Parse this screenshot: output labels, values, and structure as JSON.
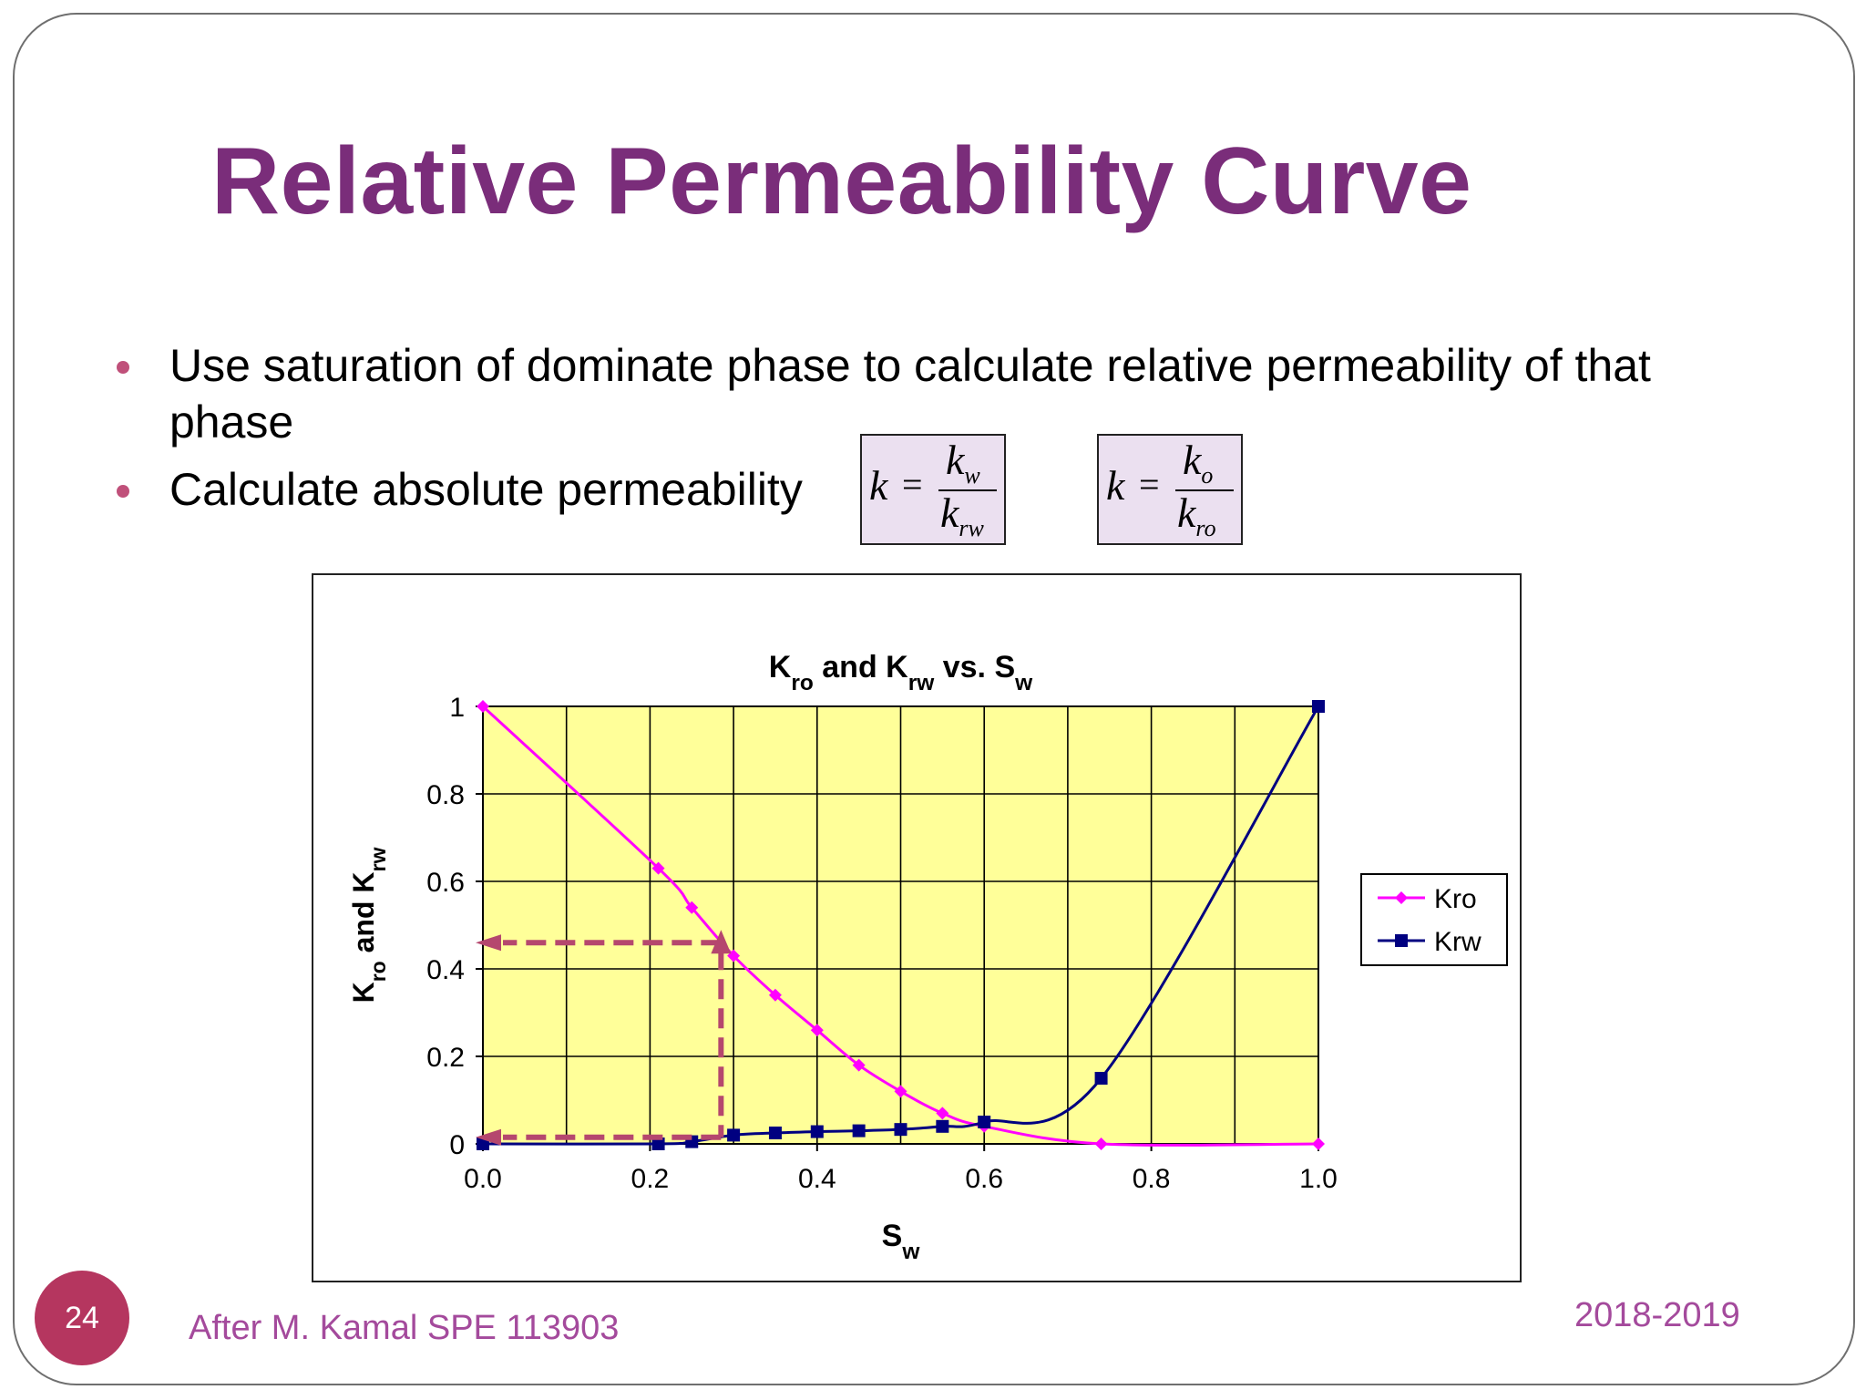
{
  "slide": {
    "title": "Relative Permeability Curve",
    "bullets": [
      "Use saturation of dominate phase to calculate relative permeability of that phase",
      "Calculate absolute permeability"
    ],
    "formulas": [
      {
        "lhs": "k",
        "eq": "=",
        "num_base": "k",
        "num_sub": "w",
        "den_base": "k",
        "den_sub": "rw"
      },
      {
        "lhs": "k",
        "eq": "=",
        "num_base": "k",
        "num_sub": "o",
        "den_base": "k",
        "den_sub": "ro"
      }
    ],
    "page_number": "24",
    "footer_left": "After M. Kamal SPE 113903",
    "footer_right": "2018-2019",
    "colors": {
      "title": "#7a2d7a",
      "bullet": "#c0507a",
      "badge": "#b5365f",
      "footer": "#a44a9c",
      "formula_bg": "#ebe0f0"
    }
  },
  "chart_data": {
    "type": "line",
    "title": "Kro and Krw vs. Sw",
    "title_parts": [
      {
        "t": "K",
        "sub": false
      },
      {
        "t": "ro",
        "sub": true
      },
      {
        "t": " and K",
        "sub": false
      },
      {
        "t": "rw",
        "sub": true
      },
      {
        "t": " vs. S",
        "sub": false
      },
      {
        "t": "w",
        "sub": true
      }
    ],
    "xlabel_parts": [
      {
        "t": "S",
        "sub": false
      },
      {
        "t": "w",
        "sub": true
      }
    ],
    "ylabel_parts": [
      {
        "t": "K",
        "sub": false
      },
      {
        "t": "ro",
        "sub": true
      },
      {
        "t": " and K",
        "sub": false
      },
      {
        "t": "rw",
        "sub": true
      }
    ],
    "xlim": [
      0,
      1.0
    ],
    "ylim": [
      0,
      1
    ],
    "x_ticks": [
      0.0,
      0.2,
      0.4,
      0.6,
      0.8,
      1.0
    ],
    "x_tick_labels": [
      "0.0",
      "0.2",
      "0.4",
      "0.6",
      "0.8",
      "1.0"
    ],
    "y_ticks": [
      0,
      0.2,
      0.4,
      0.6,
      0.8,
      1
    ],
    "y_tick_labels": [
      "0",
      "0.2",
      "0.4",
      "0.6",
      "0.8",
      "1"
    ],
    "grid": true,
    "x_grid_step": 0.1,
    "plot_background": "#ffff99",
    "legend_position": "right",
    "series": [
      {
        "name": "Kro",
        "color": "#ff00ff",
        "marker": "diamond",
        "x": [
          0.0,
          0.21,
          0.25,
          0.3,
          0.35,
          0.4,
          0.45,
          0.5,
          0.55,
          0.6,
          0.74,
          1.0
        ],
        "y": [
          1.0,
          0.63,
          0.54,
          0.43,
          0.34,
          0.26,
          0.18,
          0.12,
          0.07,
          0.04,
          0.0,
          0.0
        ]
      },
      {
        "name": "Krw",
        "color": "#000080",
        "marker": "square",
        "x": [
          0.0,
          0.21,
          0.25,
          0.3,
          0.35,
          0.4,
          0.45,
          0.5,
          0.55,
          0.6,
          0.74,
          1.0
        ],
        "y": [
          0.0,
          0.0,
          0.005,
          0.02,
          0.025,
          0.028,
          0.03,
          0.033,
          0.04,
          0.05,
          0.15,
          1.0
        ]
      }
    ],
    "annotations": [
      {
        "type": "dashed-arrow-guide",
        "color": "#b5476e",
        "x": 0.285,
        "y_high": 0.46,
        "y_low": 0.015
      }
    ]
  }
}
